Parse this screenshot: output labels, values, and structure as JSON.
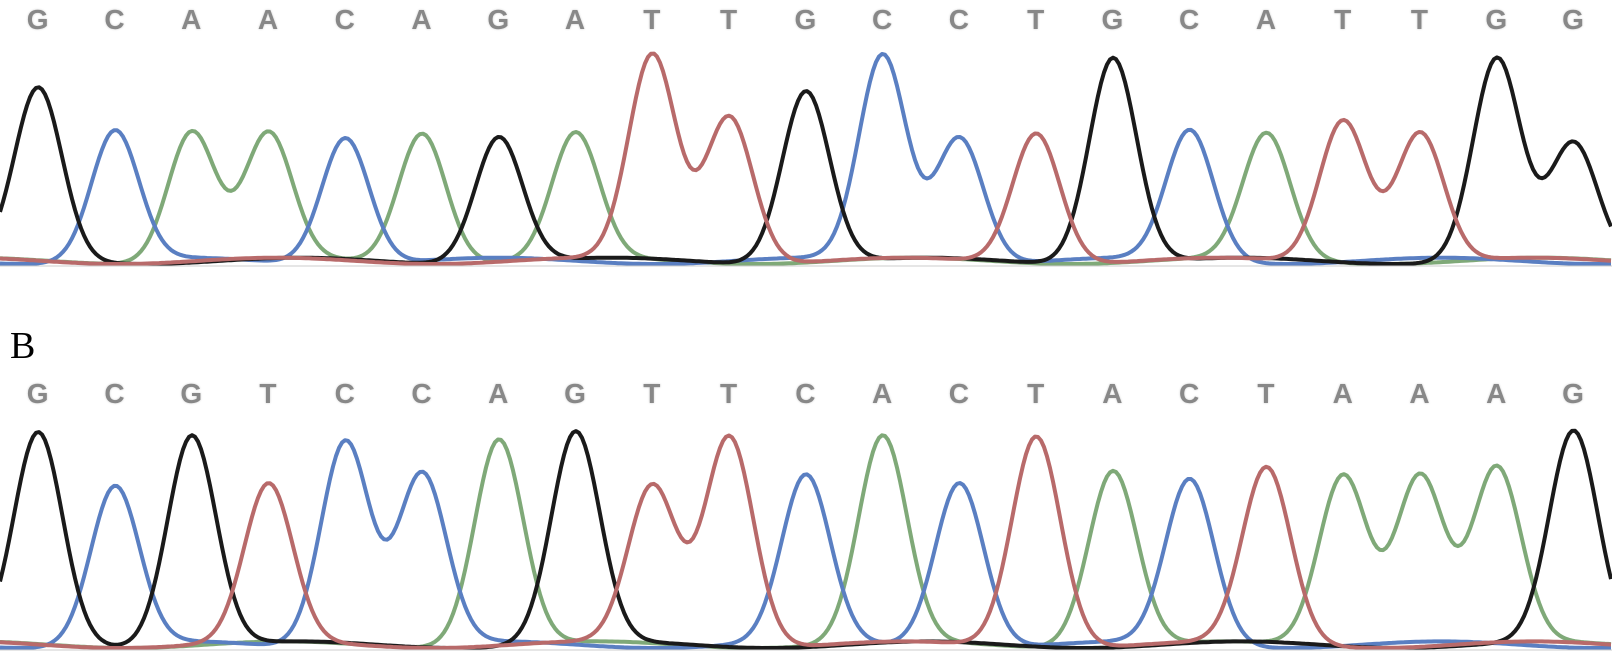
{
  "panel_b_label": "B",
  "colors": {
    "A": "#7fa978",
    "C": "#5a7fc2",
    "G": "#1a1a1a",
    "T": "#b86a6a",
    "baseline": "#cccccc",
    "bg": "#ffffff",
    "seq_text": "#888888"
  },
  "stroke_width": 4.0,
  "panels": {
    "A": {
      "sequence": [
        "G",
        "C",
        "A",
        "A",
        "C",
        "A",
        "G",
        "A",
        "T",
        "T",
        "G",
        "C",
        "C",
        "T",
        "G",
        "C",
        "A",
        "T",
        "T",
        "G",
        "G"
      ],
      "chrom_height": 230,
      "heights": [
        0.82,
        0.62,
        0.62,
        0.6,
        0.6,
        0.62,
        0.6,
        0.6,
        0.98,
        0.7,
        0.82,
        0.98,
        0.6,
        0.62,
        0.98,
        0.62,
        0.6,
        0.68,
        0.62,
        0.96,
        0.55
      ],
      "peak_width": 0.8,
      "baseline_noise": 0.03
    },
    "B": {
      "sequence": [
        "G",
        "C",
        "G",
        "T",
        "C",
        "C",
        "A",
        "G",
        "T",
        "T",
        "C",
        "A",
        "C",
        "T",
        "A",
        "C",
        "T",
        "A",
        "A",
        "A",
        "G"
      ],
      "chrom_height": 240,
      "heights": [
        0.96,
        0.72,
        0.96,
        0.72,
        0.94,
        0.78,
        0.94,
        0.96,
        0.72,
        0.96,
        0.76,
        0.94,
        0.75,
        0.96,
        0.8,
        0.75,
        0.8,
        0.78,
        0.78,
        0.8,
        0.96
      ],
      "peak_width": 0.82,
      "baseline_noise": 0.03
    }
  }
}
